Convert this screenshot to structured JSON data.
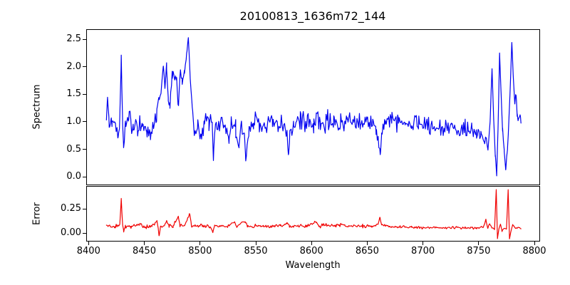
{
  "chart_data": {
    "type": "line",
    "title": "20100813_1636m72_144",
    "xlabel": "Wavelength",
    "xlim": [
      8398.5,
      8804.5
    ],
    "xticks": [
      {
        "v": 8400,
        "label": "8400"
      },
      {
        "v": 8450,
        "label": "8450"
      },
      {
        "v": 8500,
        "label": "8500"
      },
      {
        "v": 8550,
        "label": "8550"
      },
      {
        "v": 8600,
        "label": "8600"
      },
      {
        "v": 8650,
        "label": "8650"
      },
      {
        "v": 8700,
        "label": "8700"
      },
      {
        "v": 8750,
        "label": "8750"
      },
      {
        "v": 8800,
        "label": "8800"
      }
    ],
    "grid": false,
    "legend": "none",
    "x_start": 8416,
    "x_end": 8788,
    "x_step": 0.73,
    "panels": [
      {
        "name": "spectrum",
        "ylabel": "Spectrum",
        "color": "#0000f0",
        "line_width": 1.2,
        "ylim": [
          -0.142,
          2.67
        ],
        "yticks": [
          {
            "v": 0.0,
            "label": "0.0"
          },
          {
            "v": 0.5,
            "label": "0.5"
          },
          {
            "v": 1.0,
            "label": "1.0"
          },
          {
            "v": 1.5,
            "label": "1.5"
          },
          {
            "v": 2.0,
            "label": "2.0"
          },
          {
            "v": 2.5,
            "label": "2.5"
          }
        ],
        "anchors": [
          [
            8416,
            1.08,
            0.05
          ],
          [
            8417,
            1.42,
            0.04
          ],
          [
            8418.5,
            0.9,
            0.1
          ],
          [
            8421,
            1.02,
            0.12
          ],
          [
            8424,
            0.93,
            0.12
          ],
          [
            8426.5,
            0.66,
            0.06
          ],
          [
            8428,
            1.05,
            0.05
          ],
          [
            8429.3,
            2.17,
            0.03
          ],
          [
            8430.4,
            1.05,
            0.04
          ],
          [
            8431.4,
            0.53,
            0.04
          ],
          [
            8433,
            0.95,
            0.1
          ],
          [
            8436,
            1.1,
            0.11
          ],
          [
            8440,
            0.9,
            0.12
          ],
          [
            8444,
            0.87,
            0.12
          ],
          [
            8448,
            0.93,
            0.12
          ],
          [
            8452,
            0.9,
            0.12
          ],
          [
            8455.5,
            0.75,
            0.1
          ],
          [
            8458,
            0.95,
            0.1
          ],
          [
            8461,
            1.12,
            0.09
          ],
          [
            8463,
            1.38,
            0.09
          ],
          [
            8465,
            1.55,
            0.07
          ],
          [
            8467,
            2.0,
            0.05
          ],
          [
            8468.5,
            1.62,
            0.05
          ],
          [
            8470,
            2.0,
            0.05
          ],
          [
            8471.5,
            1.42,
            0.05
          ],
          [
            8473,
            1.25,
            0.06
          ],
          [
            8475,
            1.88,
            0.05
          ],
          [
            8477,
            1.82,
            0.06
          ],
          [
            8479,
            1.72,
            0.06
          ],
          [
            8480.7,
            1.28,
            0.05
          ],
          [
            8482,
            1.88,
            0.05
          ],
          [
            8484,
            1.72,
            0.06
          ],
          [
            8486,
            1.92,
            0.05
          ],
          [
            8488,
            2.25,
            0.04
          ],
          [
            8489.5,
            2.55,
            0.03
          ],
          [
            8491,
            1.9,
            0.05
          ],
          [
            8493,
            1.28,
            0.06
          ],
          [
            8495,
            0.8,
            0.08
          ],
          [
            8498,
            1.0,
            0.11
          ],
          [
            8501,
            0.75,
            0.1
          ],
          [
            8504,
            1.05,
            0.11
          ],
          [
            8508,
            0.95,
            0.11
          ],
          [
            8510.8,
            1.05,
            0.08
          ],
          [
            8512,
            0.3,
            0.04
          ],
          [
            8513.5,
            0.95,
            0.08
          ],
          [
            8517,
            1.0,
            0.12
          ],
          [
            8521,
            0.95,
            0.12
          ],
          [
            8526,
            0.62,
            0.07
          ],
          [
            8528,
            0.95,
            0.09
          ],
          [
            8532,
            0.88,
            0.1
          ],
          [
            8535,
            0.6,
            0.07
          ],
          [
            8537,
            0.92,
            0.09
          ],
          [
            8539.8,
            0.72,
            0.06
          ],
          [
            8541,
            0.28,
            0.04
          ],
          [
            8542.3,
            0.55,
            0.05
          ],
          [
            8544,
            0.9,
            0.08
          ],
          [
            8548,
            0.95,
            0.11
          ],
          [
            8553,
            1.0,
            0.12
          ],
          [
            8559,
            0.95,
            0.12
          ],
          [
            8565,
            1.0,
            0.12
          ],
          [
            8571,
            0.97,
            0.12
          ],
          [
            8575,
            1.0,
            0.1
          ],
          [
            8578,
            0.78,
            0.07
          ],
          [
            8579.3,
            0.38,
            0.04
          ],
          [
            8580.6,
            0.75,
            0.08
          ],
          [
            8584,
            0.95,
            0.11
          ],
          [
            8590,
            1.0,
            0.12
          ],
          [
            8596,
            0.97,
            0.12
          ],
          [
            8602,
            1.0,
            0.12
          ],
          [
            8608,
            0.96,
            0.12
          ],
          [
            8614,
            1.02,
            0.12
          ],
          [
            8620,
            0.98,
            0.12
          ],
          [
            8626,
            1.0,
            0.12
          ],
          [
            8632,
            0.95,
            0.12
          ],
          [
            8638,
            1.0,
            0.12
          ],
          [
            8644,
            0.97,
            0.12
          ],
          [
            8650,
            1.0,
            0.11
          ],
          [
            8655,
            0.95,
            0.1
          ],
          [
            8658,
            0.85,
            0.07
          ],
          [
            8660.5,
            0.6,
            0.05
          ],
          [
            8661.7,
            0.35,
            0.04
          ],
          [
            8663,
            0.8,
            0.06
          ],
          [
            8666,
            1.0,
            0.1
          ],
          [
            8672,
            0.97,
            0.11
          ],
          [
            8678,
            1.02,
            0.11
          ],
          [
            8684,
            0.98,
            0.11
          ],
          [
            8690,
            1.0,
            0.11
          ],
          [
            8696,
            0.95,
            0.1
          ],
          [
            8702,
            0.92,
            0.1
          ],
          [
            8708,
            0.95,
            0.1
          ],
          [
            8714,
            0.9,
            0.1
          ],
          [
            8720,
            0.88,
            0.09
          ],
          [
            8726,
            0.9,
            0.09
          ],
          [
            8732,
            0.85,
            0.09
          ],
          [
            8738,
            0.87,
            0.09
          ],
          [
            8744,
            0.85,
            0.08
          ],
          [
            8748,
            0.8,
            0.07
          ],
          [
            8752,
            0.78,
            0.06
          ],
          [
            8755,
            0.65,
            0.05
          ],
          [
            8756.8,
            0.72,
            0.04
          ],
          [
            8758.5,
            0.5,
            0.03
          ],
          [
            8760.3,
            1.0,
            0.03
          ],
          [
            8762,
            1.97,
            0.02
          ],
          [
            8763.5,
            1.05,
            0.02
          ],
          [
            8765,
            0.38,
            0.02
          ],
          [
            8766.2,
            0.02,
            0.01
          ],
          [
            8767.4,
            0.85,
            0.02
          ],
          [
            8768.8,
            2.25,
            0.02
          ],
          [
            8770.2,
            1.5,
            0.02
          ],
          [
            8771.5,
            0.88,
            0.03
          ],
          [
            8773,
            0.45,
            0.02
          ],
          [
            8774.3,
            0.12,
            0.01
          ],
          [
            8776,
            0.55,
            0.03
          ],
          [
            8778,
            1.42,
            0.02
          ],
          [
            8779.8,
            2.45,
            0.02
          ],
          [
            8781,
            1.88,
            0.02
          ],
          [
            8782.3,
            1.35,
            0.03
          ],
          [
            8783.6,
            1.5,
            0.03
          ],
          [
            8784.6,
            1.12,
            0.03
          ],
          [
            8786,
            1.02,
            0.04
          ],
          [
            8787.2,
            1.12,
            0.03
          ],
          [
            8788,
            1.0,
            0.02
          ]
        ]
      },
      {
        "name": "error",
        "ylabel": "Error",
        "color": "#f00000",
        "line_width": 1.2,
        "ylim": [
          -0.081,
          0.478
        ],
        "yticks": [
          {
            "v": 0.0,
            "label": "0.00"
          },
          {
            "v": 0.25,
            "label": "0.25"
          }
        ],
        "anchors": [
          [
            8416,
            0.07,
            0.01
          ],
          [
            8424,
            0.068,
            0.012
          ],
          [
            8428,
            0.08,
            0.008
          ],
          [
            8429.3,
            0.35,
            0.008
          ],
          [
            8430.5,
            0.09,
            0.008
          ],
          [
            8431.5,
            0.02,
            0.005
          ],
          [
            8433,
            0.065,
            0.01
          ],
          [
            8438,
            0.07,
            0.012
          ],
          [
            8443,
            0.08,
            0.014
          ],
          [
            8446,
            0.095,
            0.012
          ],
          [
            8449,
            0.07,
            0.012
          ],
          [
            8453,
            0.065,
            0.012
          ],
          [
            8457,
            0.07,
            0.012
          ],
          [
            8461.3,
            0.12,
            0.008
          ],
          [
            8462.5,
            0.05,
            0.006
          ],
          [
            8463.2,
            -0.035,
            0.005
          ],
          [
            8464.5,
            0.06,
            0.008
          ],
          [
            8468,
            0.08,
            0.012
          ],
          [
            8470,
            0.12,
            0.008
          ],
          [
            8472,
            0.075,
            0.01
          ],
          [
            8476,
            0.072,
            0.011
          ],
          [
            8480.5,
            0.17,
            0.007
          ],
          [
            8482,
            0.075,
            0.011
          ],
          [
            8486,
            0.07,
            0.011
          ],
          [
            8490.8,
            0.2,
            0.007
          ],
          [
            8492.3,
            0.072,
            0.01
          ],
          [
            8497,
            0.07,
            0.011
          ],
          [
            8503,
            0.072,
            0.011
          ],
          [
            8509,
            0.07,
            0.011
          ],
          [
            8511.5,
            0.01,
            0.005
          ],
          [
            8513,
            0.085,
            0.009
          ],
          [
            8518,
            0.07,
            0.011
          ],
          [
            8525,
            0.068,
            0.011
          ],
          [
            8531,
            0.115,
            0.008
          ],
          [
            8533,
            0.07,
            0.01
          ],
          [
            8540.5,
            0.125,
            0.008
          ],
          [
            8542.5,
            0.068,
            0.01
          ],
          [
            8549,
            0.07,
            0.011
          ],
          [
            8557,
            0.072,
            0.011
          ],
          [
            8565,
            0.07,
            0.011
          ],
          [
            8572,
            0.072,
            0.011
          ],
          [
            8578,
            0.095,
            0.008
          ],
          [
            8580,
            0.07,
            0.011
          ],
          [
            8588,
            0.072,
            0.011
          ],
          [
            8596,
            0.073,
            0.011
          ],
          [
            8604.5,
            0.115,
            0.008
          ],
          [
            8606.5,
            0.072,
            0.011
          ],
          [
            8614,
            0.075,
            0.012
          ],
          [
            8622,
            0.08,
            0.012
          ],
          [
            8630,
            0.078,
            0.012
          ],
          [
            8638,
            0.075,
            0.011
          ],
          [
            8646,
            0.072,
            0.011
          ],
          [
            8654,
            0.07,
            0.01
          ],
          [
            8659.8,
            0.09,
            0.008
          ],
          [
            8661.5,
            0.165,
            0.007
          ],
          [
            8663,
            0.078,
            0.009
          ],
          [
            8670,
            0.065,
            0.009
          ],
          [
            8680,
            0.06,
            0.009
          ],
          [
            8690,
            0.058,
            0.009
          ],
          [
            8700,
            0.055,
            0.008
          ],
          [
            8710,
            0.055,
            0.008
          ],
          [
            8720,
            0.053,
            0.008
          ],
          [
            8730,
            0.055,
            0.008
          ],
          [
            8740,
            0.05,
            0.007
          ],
          [
            8748,
            0.052,
            0.007
          ],
          [
            8754,
            0.06,
            0.006
          ],
          [
            8756.5,
            0.135,
            0.005
          ],
          [
            8758.2,
            0.048,
            0.005
          ],
          [
            8760,
            0.1,
            0.005
          ],
          [
            8761.8,
            0.055,
            0.004
          ],
          [
            8764.3,
            0.04,
            0.004
          ],
          [
            8765.8,
            0.45,
            0.003
          ],
          [
            8766.9,
            -0.06,
            0.003
          ],
          [
            8768.2,
            0.04,
            0.004
          ],
          [
            8769.6,
            0.09,
            0.004
          ],
          [
            8771,
            0.02,
            0.004
          ],
          [
            8773,
            0.05,
            0.004
          ],
          [
            8775,
            0.04,
            0.004
          ],
          [
            8776.5,
            0.45,
            0.003
          ],
          [
            8777.7,
            -0.06,
            0.003
          ],
          [
            8779.2,
            0.03,
            0.004
          ],
          [
            8780.6,
            0.09,
            0.004
          ],
          [
            8782,
            0.06,
            0.004
          ],
          [
            8784,
            0.05,
            0.004
          ],
          [
            8786,
            0.055,
            0.004
          ],
          [
            8788,
            0.045,
            0.003
          ]
        ]
      }
    ]
  }
}
